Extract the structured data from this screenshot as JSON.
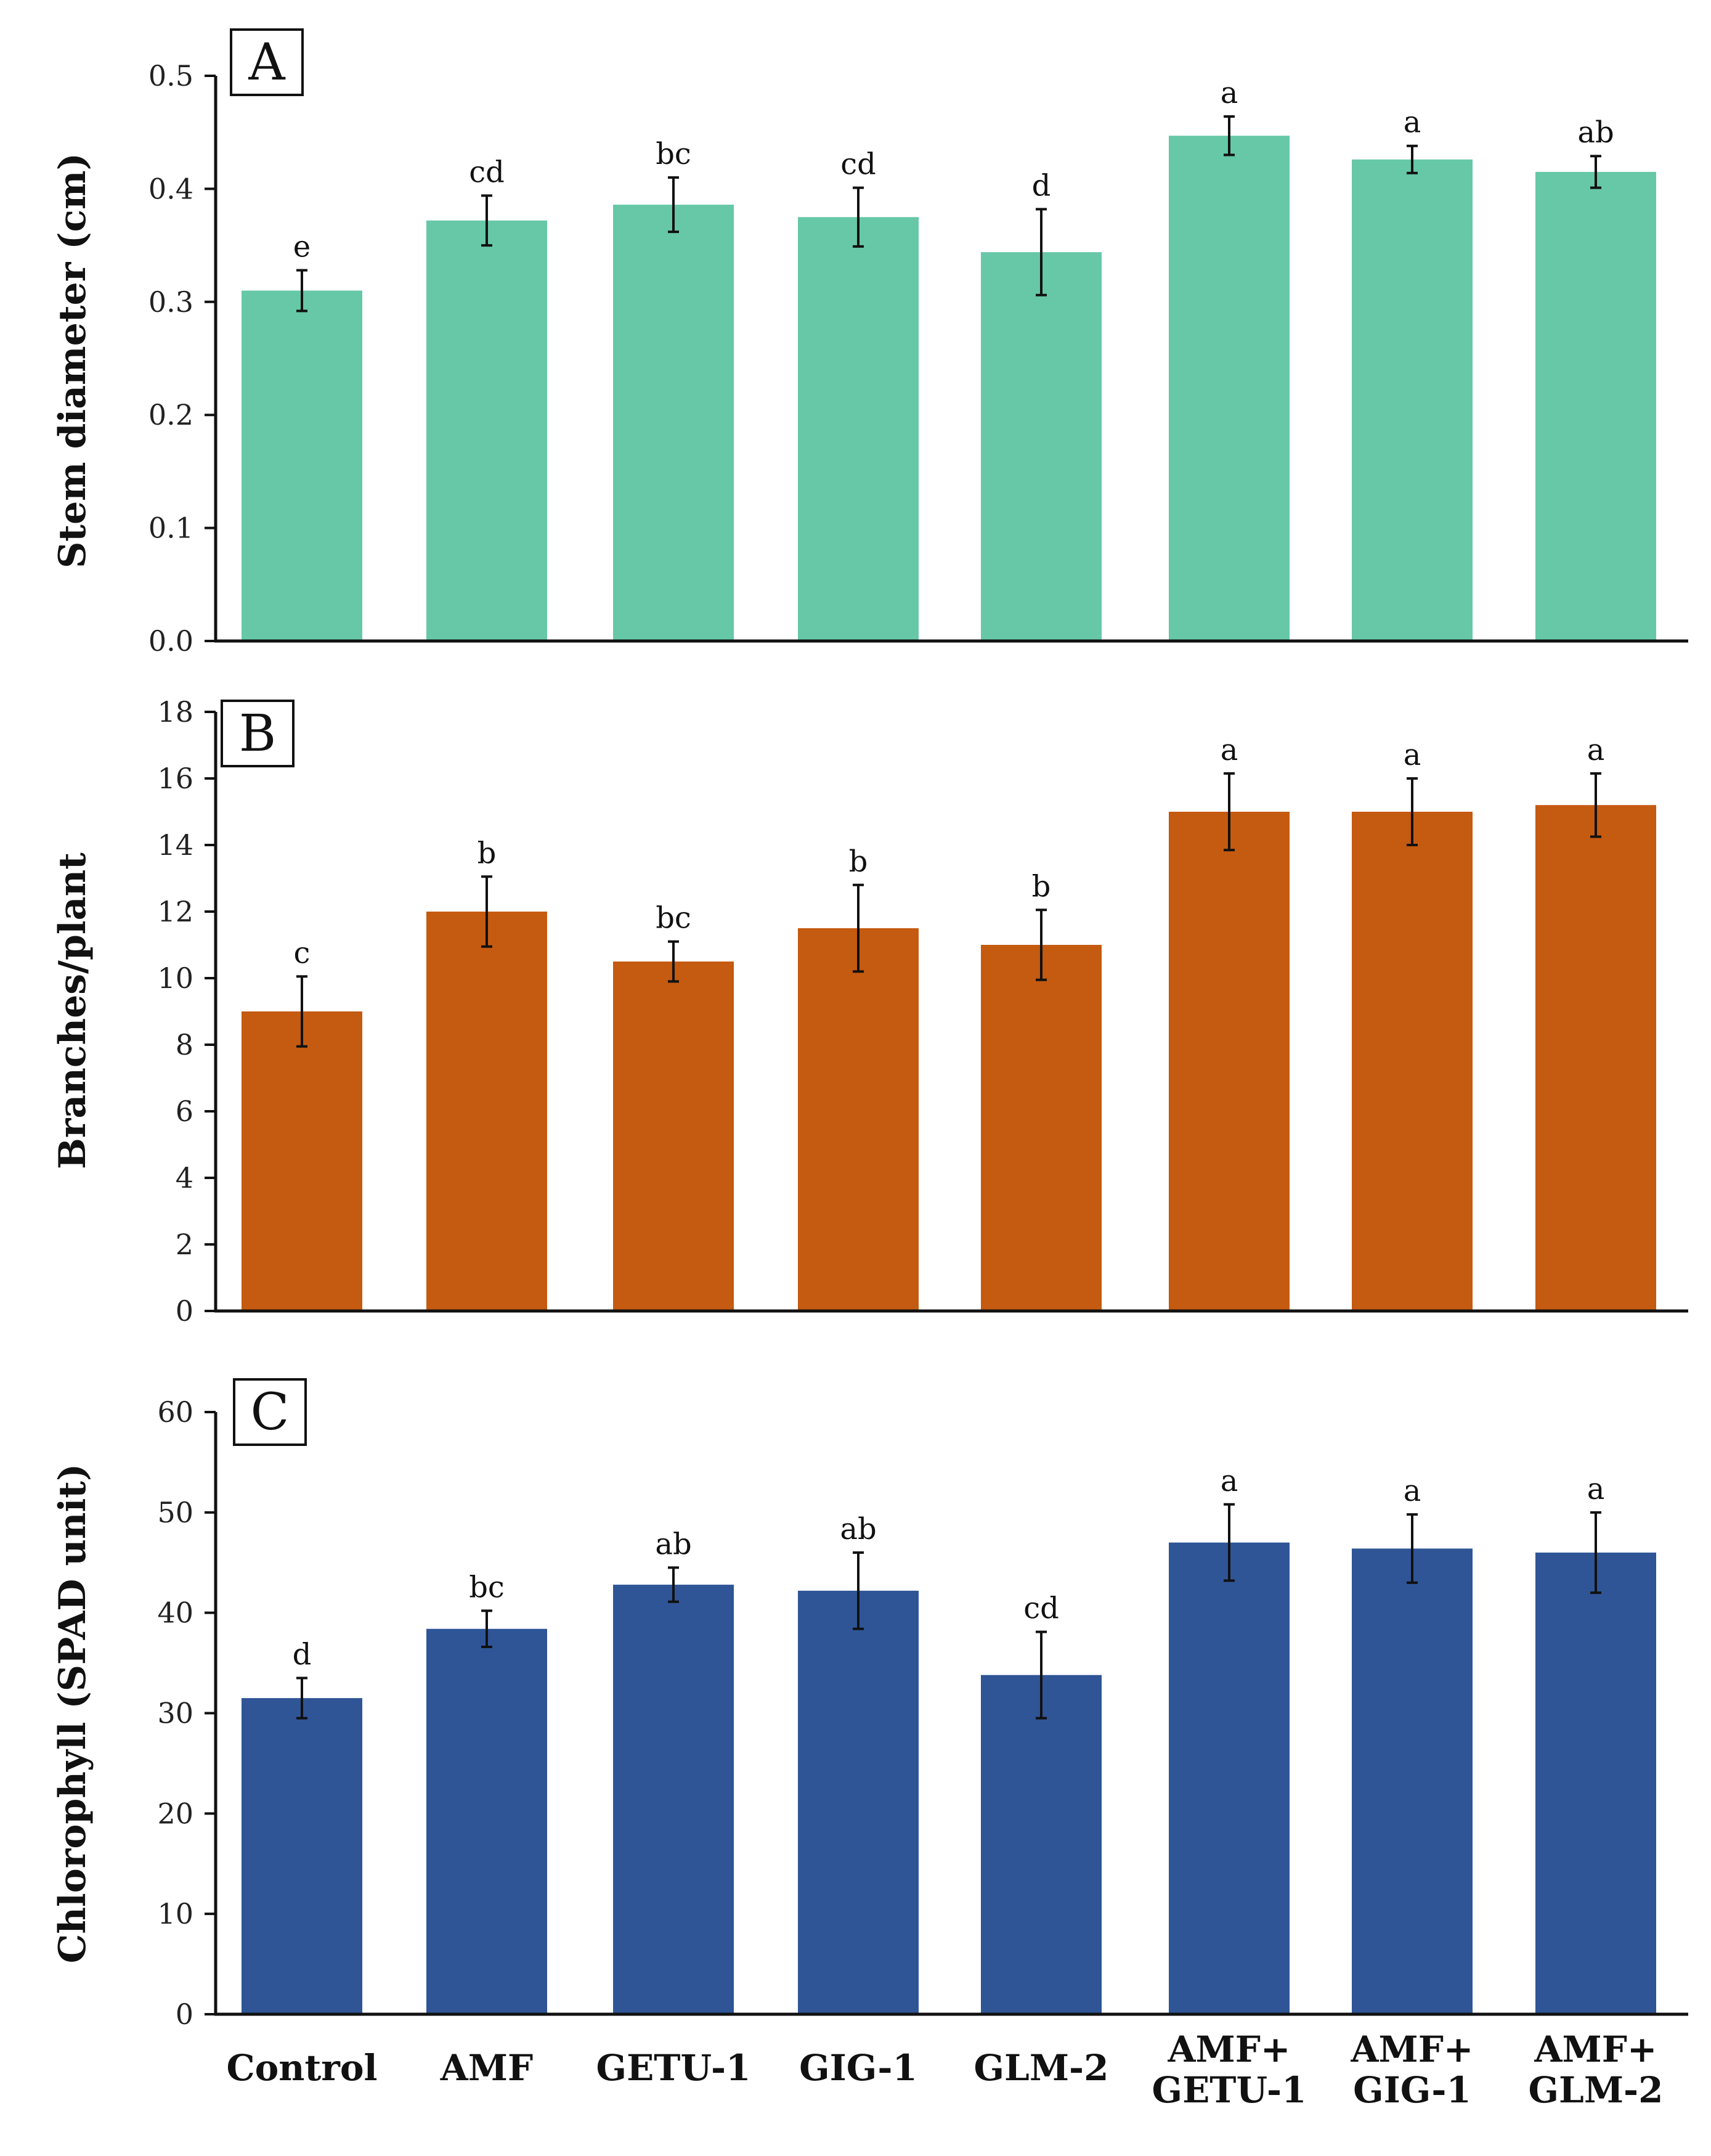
{
  "chart_data": [
    {
      "type": "bar",
      "panel": "A",
      "title": "",
      "xlabel": "",
      "ylabel": "Stem diameter (cm)",
      "ylim": [
        0,
        0.5
      ],
      "yticks": [
        "0.0",
        "0.1",
        "0.2",
        "0.3",
        "0.4",
        "0.5"
      ],
      "tick_values": [
        0,
        0.1,
        0.2,
        0.3,
        0.4,
        0.5
      ],
      "color": "#66c8a6",
      "categories": [
        "Control",
        "AMF",
        "GETU-1",
        "GIG-1",
        "GLM-2",
        "AMF+ GETU-1",
        "AMF+ GIG-1",
        "AMF+ GLM-2"
      ],
      "values": [
        0.31,
        0.372,
        0.386,
        0.375,
        0.344,
        0.447,
        0.426,
        0.415
      ],
      "errors": [
        0.018,
        0.022,
        0.024,
        0.026,
        0.038,
        0.017,
        0.012,
        0.014
      ],
      "letters": [
        "e",
        "cd",
        "bc",
        "cd",
        "d",
        "a",
        "a",
        "ab"
      ]
    },
    {
      "type": "bar",
      "panel": "B",
      "title": "",
      "xlabel": "",
      "ylabel": "Branches/plant",
      "ylim": [
        0,
        18
      ],
      "yticks": [
        "0",
        "2",
        "4",
        "6",
        "8",
        "10",
        "12",
        "14",
        "16",
        "18"
      ],
      "tick_values": [
        0,
        2,
        4,
        6,
        8,
        10,
        12,
        14,
        16,
        18
      ],
      "color": "#c55a11",
      "categories": [
        "Control",
        "AMF",
        "GETU-1",
        "GIG-1",
        "GLM-2",
        "AMF+ GETU-1",
        "AMF+ GIG-1",
        "AMF+ GLM-2"
      ],
      "values": [
        9.0,
        12.0,
        10.5,
        11.5,
        11.0,
        15.0,
        15.0,
        15.2
      ],
      "errors": [
        1.05,
        1.05,
        0.6,
        1.3,
        1.05,
        1.15,
        1.0,
        0.95
      ],
      "letters": [
        "c",
        "b",
        "bc",
        "b",
        "b",
        "a",
        "a",
        "a"
      ]
    },
    {
      "type": "bar",
      "panel": "C",
      "title": "",
      "xlabel": "",
      "ylabel": "Chlorophyll (SPAD unit)",
      "ylim": [
        0,
        60
      ],
      "yticks": [
        "0",
        "10",
        "20",
        "30",
        "40",
        "50",
        "60"
      ],
      "tick_values": [
        0,
        10,
        20,
        30,
        40,
        50,
        60
      ],
      "color": "#2f5597",
      "categories": [
        "Control",
        "AMF",
        "GETU-1",
        "GIG-1",
        "GLM-2",
        "AMF+ GETU-1",
        "AMF+ GIG-1",
        "AMF+ GLM-2"
      ],
      "values": [
        31.5,
        38.4,
        42.8,
        42.2,
        33.8,
        47.0,
        46.4,
        46.0
      ],
      "errors": [
        2.0,
        1.8,
        1.7,
        3.8,
        4.3,
        3.8,
        3.4,
        4.0
      ],
      "letters": [
        "d",
        "bc",
        "ab",
        "ab",
        "cd",
        "a",
        "a",
        "a"
      ]
    }
  ],
  "x_axis_labels": [
    [
      "Control"
    ],
    [
      "AMF"
    ],
    [
      "GETU-1"
    ],
    [
      "GIG-1"
    ],
    [
      "GLM-2"
    ],
    [
      "AMF+",
      "GETU-1"
    ],
    [
      "AMF+",
      "GIG-1"
    ],
    [
      "AMF+",
      "GLM-2"
    ]
  ]
}
